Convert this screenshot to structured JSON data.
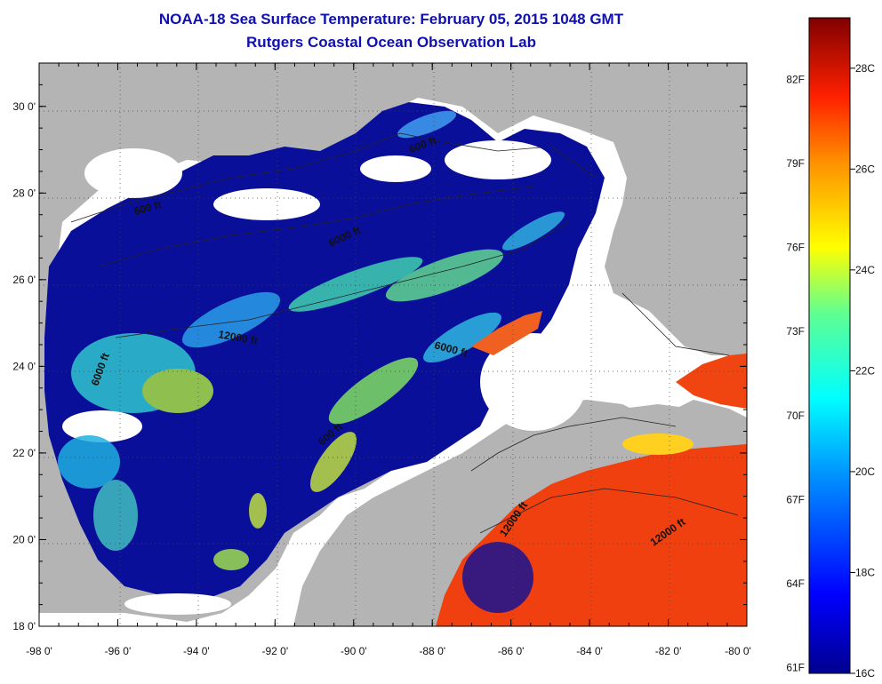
{
  "header": {
    "title": "NOAA-18 Sea Surface Temperature:  February 05, 2015 1048 GMT",
    "subtitle": "Rutgers Coastal Ocean Observation Lab"
  },
  "axes": {
    "x_ticks": [
      "-98 0'",
      "-96 0'",
      "-94 0'",
      "-92 0'",
      "-90 0'",
      "-88 0'",
      "-86 0'",
      "-84 0'",
      "-82 0'",
      "-80 0'"
    ],
    "y_ticks": [
      "30 0'",
      "28 0'",
      "26 0'",
      "24 0'",
      "22 0'",
      "20 0'",
      "18 0'"
    ],
    "lon_range": [
      -98,
      -80
    ],
    "lat_range": [
      18,
      31
    ]
  },
  "contours": [
    "600 ft",
    "600 ft",
    "6000 ft",
    "12000 ft",
    "6000 ft",
    "6000 ft",
    "600 ft",
    "12000 ft",
    "12000 ft"
  ],
  "colorbar": {
    "fahrenheit": [
      "82F",
      "79F",
      "76F",
      "73F",
      "70F",
      "67F",
      "64F",
      "61F"
    ],
    "celsius": [
      "28C",
      "26C",
      "24C",
      "22C",
      "20C",
      "18C",
      "16C"
    ],
    "range_c": [
      16,
      29
    ]
  },
  "colors": {
    "land": "#b4b4b4",
    "cloud": "#ffffff",
    "cold": "#0a0f9a",
    "title": "#1010b0"
  }
}
